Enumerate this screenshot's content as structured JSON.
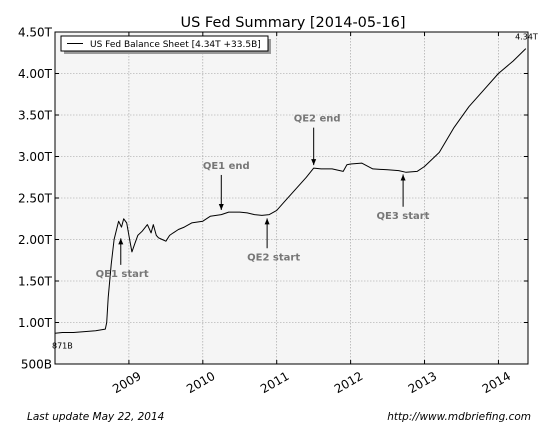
{
  "chart_data": {
    "type": "line",
    "title": "US Fed Summary  [2014-05-16]",
    "xlabel": "",
    "ylabel": "",
    "x_range": [
      2008.0,
      2014.4
    ],
    "ylim": [
      0.5,
      4.5
    ],
    "x_ticks": [
      {
        "value": 2009,
        "label": "2009"
      },
      {
        "value": 2010,
        "label": "2010"
      },
      {
        "value": 2011,
        "label": "2011"
      },
      {
        "value": 2012,
        "label": "2012"
      },
      {
        "value": 2013,
        "label": "2013"
      },
      {
        "value": 2014,
        "label": "2014"
      }
    ],
    "y_ticks": [
      {
        "value": 0.5,
        "label": "500B"
      },
      {
        "value": 1.0,
        "label": "1.00T"
      },
      {
        "value": 1.5,
        "label": "1.50T"
      },
      {
        "value": 2.0,
        "label": "2.00T"
      },
      {
        "value": 2.5,
        "label": "2.50T"
      },
      {
        "value": 3.0,
        "label": "3.00T"
      },
      {
        "value": 3.5,
        "label": "3.50T"
      },
      {
        "value": 4.0,
        "label": "4.00T"
      },
      {
        "value": 4.5,
        "label": "4.50T"
      }
    ],
    "grid": true,
    "legend_position": "top-left",
    "series": [
      {
        "name": "US Fed Balance Sheet [4.34T +33.5B]",
        "color": "#000000",
        "x": [
          2008.0,
          2008.1,
          2008.25,
          2008.4,
          2008.55,
          2008.68,
          2008.7,
          2008.72,
          2008.76,
          2008.8,
          2008.86,
          2008.9,
          2008.93,
          2008.97,
          2009.0,
          2009.04,
          2009.08,
          2009.12,
          2009.18,
          2009.25,
          2009.3,
          2009.33,
          2009.37,
          2009.4,
          2009.45,
          2009.5,
          2009.55,
          2009.6,
          2009.67,
          2009.75,
          2009.85,
          2010.0,
          2010.1,
          2010.25,
          2010.35,
          2010.5,
          2010.6,
          2010.7,
          2010.8,
          2010.9,
          2011.0,
          2011.1,
          2011.25,
          2011.4,
          2011.5,
          2011.6,
          2011.75,
          2011.9,
          2011.95,
          2012.0,
          2012.15,
          2012.3,
          2012.5,
          2012.65,
          2012.75,
          2012.9,
          2013.0,
          2013.2,
          2013.4,
          2013.6,
          2013.8,
          2014.0,
          2014.2,
          2014.37
        ],
        "y": [
          0.87,
          0.88,
          0.88,
          0.89,
          0.9,
          0.92,
          1.0,
          1.3,
          1.7,
          2.0,
          2.22,
          2.15,
          2.25,
          2.2,
          2.05,
          1.85,
          1.95,
          2.05,
          2.1,
          2.18,
          2.08,
          2.18,
          2.05,
          2.02,
          2.0,
          1.98,
          2.05,
          2.08,
          2.12,
          2.15,
          2.2,
          2.22,
          2.28,
          2.3,
          2.33,
          2.33,
          2.32,
          2.3,
          2.29,
          2.3,
          2.35,
          2.45,
          2.6,
          2.75,
          2.86,
          2.85,
          2.85,
          2.82,
          2.9,
          2.91,
          2.92,
          2.85,
          2.84,
          2.83,
          2.81,
          2.82,
          2.88,
          3.05,
          3.35,
          3.6,
          3.8,
          4.0,
          4.15,
          4.3
        ]
      }
    ],
    "annotations": [
      {
        "text": "QE1 start",
        "x": 2008.89,
        "y": 2.05,
        "label_x": 2008.55,
        "label_y": 1.55
      },
      {
        "text": "QE1 end",
        "x": 2010.25,
        "y": 2.32,
        "label_x": 2010.0,
        "label_y": 2.85
      },
      {
        "text": "QE2 start",
        "x": 2010.87,
        "y": 2.29,
        "label_x": 2010.6,
        "label_y": 1.75
      },
      {
        "text": "QE2 end",
        "x": 2011.5,
        "y": 2.86,
        "label_x": 2011.23,
        "label_y": 3.42
      },
      {
        "text": "QE3 start",
        "x": 2012.71,
        "y": 2.82,
        "label_x": 2012.35,
        "label_y": 2.25
      }
    ],
    "point_labels": [
      {
        "text": "871B",
        "x": 2008.0,
        "y": 0.87
      },
      {
        "text": "4.34T",
        "x": 2014.37,
        "y": 4.34
      }
    ]
  },
  "footer": {
    "left": "Last update May 22, 2014",
    "right": "http://www.mdbriefing.com"
  }
}
